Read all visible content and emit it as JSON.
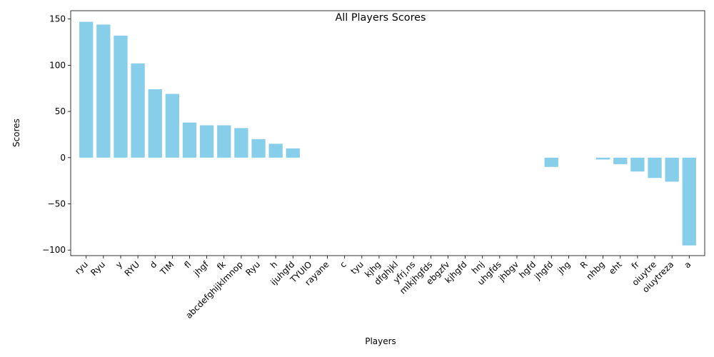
{
  "chart_data": {
    "type": "bar",
    "title": "All Players Scores",
    "xlabel": "Players",
    "ylabel": "Scores",
    "ylim": [
      -106,
      159
    ],
    "yticks": [
      -100,
      -50,
      0,
      50,
      100,
      150
    ],
    "bar_color": "#87ceeb",
    "grid": false,
    "categories": [
      "ryu",
      "Ryu",
      "y",
      "RYU",
      "d",
      "TIM",
      "fl",
      "jhgf",
      "fk",
      "abcdefghijklmnop",
      "Ryu",
      "h",
      "ijuhgfd",
      "TYUIO",
      "rayane",
      "c",
      "tyu",
      "kjhg",
      "dfghjkl",
      "yfrj,ns",
      "mlkjhgfds",
      "ebgzfv",
      "kjhgfd",
      "hnj",
      "uhgfds",
      "jhbgv",
      "hgfd",
      "jhgfd",
      "jhg",
      "R",
      "nhbg",
      "eht",
      "fr",
      "oiuytre",
      "oiuytreza",
      "a"
    ],
    "values": [
      147,
      144,
      132,
      102,
      74,
      69,
      38,
      35,
      35,
      32,
      20,
      15,
      10,
      0,
      0,
      0,
      0,
      0,
      0,
      0,
      0,
      0,
      0,
      0,
      0,
      0,
      0,
      -10,
      0,
      0,
      -2,
      -7,
      -15,
      -22,
      -26,
      -95
    ]
  }
}
